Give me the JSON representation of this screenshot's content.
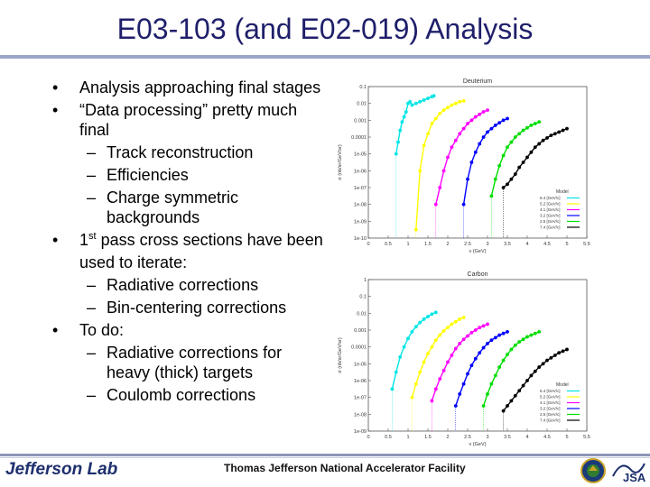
{
  "slide": {
    "title": "E03-103 (and E02-019) Analysis",
    "bullets": [
      {
        "level": 1,
        "marker": "•",
        "text": "Analysis approaching final stages"
      },
      {
        "level": 1,
        "marker": "•",
        "text": "“Data processing” pretty much final"
      },
      {
        "level": 2,
        "marker": "–",
        "text": "Track reconstruction"
      },
      {
        "level": 2,
        "marker": "–",
        "text": "Efficiencies"
      },
      {
        "level": 2,
        "marker": "–",
        "text": "Charge symmetric backgrounds"
      },
      {
        "level": 1,
        "marker": "•",
        "text_before": "1",
        "sup": "st",
        "text": " pass cross sections have been used to iterate:"
      },
      {
        "level": 2,
        "marker": "–",
        "text": "Radiative corrections"
      },
      {
        "level": 2,
        "marker": "–",
        "text": "Bin-centering corrections"
      },
      {
        "level": 1,
        "marker": "•",
        "text": "To do:"
      },
      {
        "level": 2,
        "marker": "–",
        "text": "Radiative corrections for heavy (thick) targets"
      },
      {
        "level": 2,
        "marker": "–",
        "text": "Coulomb corrections"
      }
    ]
  },
  "footer": {
    "logo_text": "Jefferson Lab",
    "facility": "Thomas Jefferson National Accelerator Facility",
    "jsa_logo": "JSA"
  },
  "colors": {
    "title": "#1f1f6b",
    "series": [
      "#00e5e5",
      "#ffff00",
      "#ff00ff",
      "#0000ff",
      "#00dd00",
      "#000000"
    ]
  },
  "chart_data": [
    {
      "type": "scatter",
      "title": "Deuterium",
      "xlabel": "ν (GeV)",
      "ylabel": "σ (nb/sr/GeV/sr)",
      "xlim": [
        0,
        5.5
      ],
      "ylim_log10": [
        -10,
        -1
      ],
      "x_ticks": [
        "0",
        "0.5",
        "1",
        "1.5",
        "2",
        "2.5",
        "3",
        "3.5",
        "4",
        "4.5",
        "5",
        "5.5"
      ],
      "y_ticks": [
        "1e-10",
        "1e-09",
        "1e-08",
        "1e-07",
        "1e-06",
        "1e-05",
        "0.0001",
        "0.001",
        "0.01",
        "0.1"
      ],
      "legend_title": "Model",
      "legend_position": "bottom-right",
      "legend_entries": [
        "6.4 [GeV/c]",
        "5.2 [GeV/c]",
        "4.1 [GeV/c]",
        "3.2 [GeV/c]",
        "2.5 [GeV/c]",
        "7.4 [GeV/c]"
      ],
      "series": [
        {
          "name": "6.4 [GeV/c]",
          "color": "#00e5e5",
          "x": [
            0.7,
            0.75,
            0.8,
            0.85,
            0.9,
            0.95,
            1.0,
            1.05,
            1.1,
            1.2,
            1.3,
            1.4,
            1.5,
            1.6,
            1.65
          ],
          "y_log10": [
            -5,
            -4.3,
            -3.6,
            -3.1,
            -2.8,
            -2.5,
            -2.0,
            -1.9,
            -2.1,
            -2.0,
            -1.9,
            -1.8,
            -1.7,
            -1.6,
            -1.55
          ]
        },
        {
          "name": "5.2 [GeV/c]",
          "color": "#ffff00",
          "x": [
            1.2,
            1.3,
            1.4,
            1.5,
            1.6,
            1.7,
            1.8,
            1.9,
            2.0,
            2.1,
            2.2,
            2.3,
            2.4
          ],
          "y_log10": [
            -9.5,
            -6.0,
            -4.5,
            -3.8,
            -3.2,
            -2.9,
            -2.6,
            -2.4,
            -2.25,
            -2.1,
            -2.0,
            -1.9,
            -1.85
          ]
        },
        {
          "name": "4.1 [GeV/c]",
          "color": "#ff00ff",
          "x": [
            1.7,
            1.8,
            1.9,
            2.0,
            2.1,
            2.2,
            2.3,
            2.4,
            2.5,
            2.6,
            2.7,
            2.8,
            2.9,
            3.0
          ],
          "y_log10": [
            -8.0,
            -7.0,
            -6.0,
            -5.2,
            -4.6,
            -4.2,
            -3.8,
            -3.5,
            -3.2,
            -3.0,
            -2.8,
            -2.65,
            -2.5,
            -2.4
          ]
        },
        {
          "name": "3.2 [GeV/c]",
          "color": "#0000ff",
          "x": [
            2.4,
            2.5,
            2.6,
            2.7,
            2.8,
            2.9,
            3.0,
            3.1,
            3.2,
            3.3,
            3.4,
            3.5
          ],
          "y_log10": [
            -8.0,
            -6.5,
            -5.5,
            -4.9,
            -4.4,
            -4.0,
            -3.7,
            -3.5,
            -3.3,
            -3.15,
            -3.0,
            -2.9
          ]
        },
        {
          "name": "2.5 [GeV/c]",
          "color": "#00dd00",
          "x": [
            3.1,
            3.2,
            3.3,
            3.4,
            3.5,
            3.6,
            3.7,
            3.8,
            3.9,
            4.0,
            4.1,
            4.2,
            4.3
          ],
          "y_log10": [
            -7.5,
            -6.5,
            -5.7,
            -5.1,
            -4.6,
            -4.3,
            -4.0,
            -3.8,
            -3.6,
            -3.45,
            -3.3,
            -3.2,
            -3.1
          ]
        },
        {
          "name": "7.4 [GeV/c]",
          "color": "#000000",
          "x": [
            3.4,
            3.5,
            3.6,
            3.7,
            3.8,
            3.9,
            4.0,
            4.1,
            4.2,
            4.3,
            4.4,
            4.5,
            4.6,
            4.7,
            4.8,
            4.9,
            5.0
          ],
          "y_log10": [
            -7.0,
            -6.8,
            -6.5,
            -6.2,
            -5.8,
            -5.5,
            -5.2,
            -4.9,
            -4.6,
            -4.4,
            -4.2,
            -4.05,
            -3.9,
            -3.8,
            -3.7,
            -3.6,
            -3.5
          ]
        }
      ]
    },
    {
      "type": "scatter",
      "title": "Carbon",
      "xlabel": "ν (GeV)",
      "ylabel": "σ (nb/sr/GeV/sr)",
      "xlim": [
        0,
        5.5
      ],
      "ylim_log10": [
        -9,
        0
      ],
      "x_ticks": [
        "0",
        "0.5",
        "1",
        "1.5",
        "2",
        "2.5",
        "3",
        "3.5",
        "4",
        "4.5",
        "5",
        "5.5"
      ],
      "y_ticks": [
        "1e-09",
        "1e-08",
        "1e-07",
        "1e-06",
        "1e-05",
        "0.0001",
        "0.001",
        "0.01",
        "0.1",
        "1"
      ],
      "legend_title": "Model",
      "legend_position": "bottom-right",
      "legend_entries": [
        "6.4 [GeV/c]",
        "5.2 [GeV/c]",
        "4.1 [GeV/c]",
        "3.2 [GeV/c]",
        "2.5 [GeV/c]",
        "7.4 [GeV/c]"
      ],
      "series": [
        {
          "name": "6.4 [GeV/c]",
          "color": "#00e5e5",
          "x": [
            0.6,
            0.7,
            0.8,
            0.9,
            1.0,
            1.1,
            1.2,
            1.3,
            1.4,
            1.5,
            1.6,
            1.7
          ],
          "y_log10": [
            -6.5,
            -5.5,
            -4.6,
            -4.0,
            -3.5,
            -3.1,
            -2.8,
            -2.55,
            -2.35,
            -2.2,
            -2.05,
            -1.95
          ]
        },
        {
          "name": "5.2 [GeV/c]",
          "color": "#ffff00",
          "x": [
            1.1,
            1.2,
            1.3,
            1.4,
            1.5,
            1.6,
            1.7,
            1.8,
            1.9,
            2.0,
            2.1,
            2.2,
            2.3,
            2.4
          ],
          "y_log10": [
            -7.0,
            -6.2,
            -5.5,
            -4.9,
            -4.4,
            -4.0,
            -3.6,
            -3.3,
            -3.05,
            -2.85,
            -2.65,
            -2.5,
            -2.35,
            -2.25
          ]
        },
        {
          "name": "4.1 [GeV/c]",
          "color": "#ff00ff",
          "x": [
            1.6,
            1.7,
            1.8,
            1.9,
            2.0,
            2.1,
            2.2,
            2.3,
            2.4,
            2.5,
            2.6,
            2.7,
            2.8,
            2.9,
            3.0
          ],
          "y_log10": [
            -7.2,
            -6.5,
            -5.9,
            -5.4,
            -4.9,
            -4.5,
            -4.1,
            -3.8,
            -3.55,
            -3.35,
            -3.15,
            -3.0,
            -2.85,
            -2.75,
            -2.65
          ]
        },
        {
          "name": "3.2 [GeV/c]",
          "color": "#0000ff",
          "x": [
            2.2,
            2.3,
            2.4,
            2.5,
            2.6,
            2.7,
            2.8,
            2.9,
            3.0,
            3.1,
            3.2,
            3.3,
            3.4,
            3.5
          ],
          "y_log10": [
            -7.5,
            -6.8,
            -6.2,
            -5.6,
            -5.1,
            -4.7,
            -4.35,
            -4.05,
            -3.8,
            -3.6,
            -3.45,
            -3.3,
            -3.2,
            -3.1
          ]
        },
        {
          "name": "2.5 [GeV/c]",
          "color": "#00dd00",
          "x": [
            2.9,
            3.0,
            3.1,
            3.2,
            3.3,
            3.4,
            3.5,
            3.6,
            3.7,
            3.8,
            3.9,
            4.0,
            4.1,
            4.2,
            4.3
          ],
          "y_log10": [
            -7.5,
            -6.8,
            -6.2,
            -5.7,
            -5.2,
            -4.8,
            -4.45,
            -4.15,
            -3.9,
            -3.7,
            -3.55,
            -3.4,
            -3.3,
            -3.2,
            -3.1
          ]
        },
        {
          "name": "7.4 [GeV/c]",
          "color": "#000000",
          "x": [
            3.4,
            3.5,
            3.6,
            3.7,
            3.8,
            3.9,
            4.0,
            4.1,
            4.2,
            4.3,
            4.4,
            4.5,
            4.6,
            4.7,
            4.8,
            4.9,
            5.0
          ],
          "y_log10": [
            -7.8,
            -7.5,
            -7.2,
            -6.9,
            -6.6,
            -6.3,
            -6.0,
            -5.7,
            -5.45,
            -5.2,
            -5.0,
            -4.8,
            -4.65,
            -4.5,
            -4.35,
            -4.25,
            -4.15
          ]
        }
      ]
    }
  ]
}
